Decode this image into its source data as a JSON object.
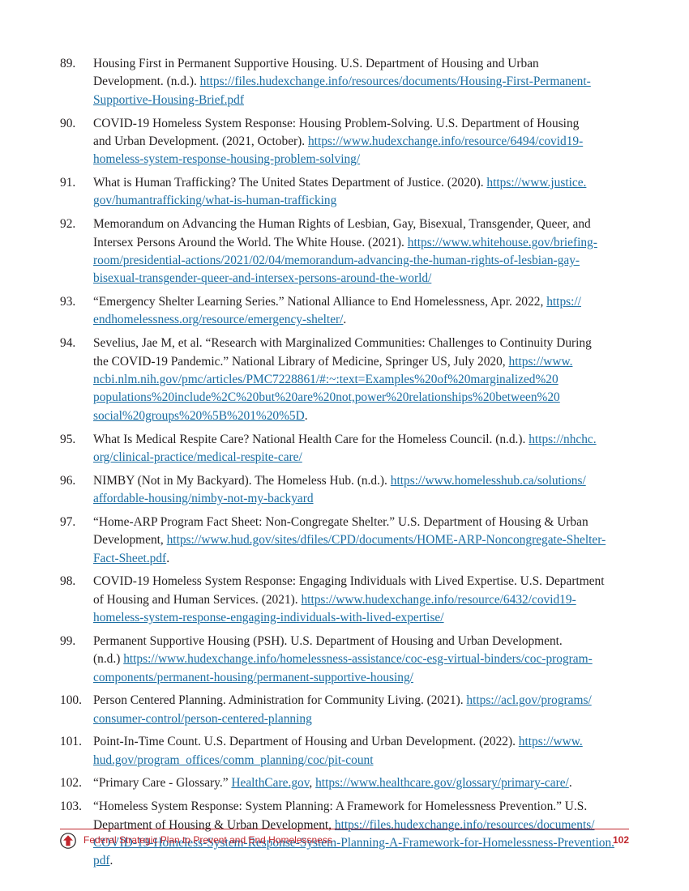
{
  "references": [
    {
      "num": "89.",
      "text": "Housing First in Permanent Supportive Housing. U.S. Department of Housing and Urban\nDevelopment. (n.d.). ",
      "link": "https://files.hudexchange.info/resources/documents/Housing-First-Permanent-\nSupportive-Housing-Brief.pdf",
      "after": ""
    },
    {
      "num": "90.",
      "text": "COVID-19 Homeless System Response: Housing Problem-Solving. U.S. Department of Housing\nand Urban Development. (2021, October). ",
      "link": "https://www.hudexchange.info/resource/6494/covid19-\nhomeless-system-response-housing-problem-solving/",
      "after": ""
    },
    {
      "num": "91.",
      "text": "What is Human Trafficking? The United States Department of Justice. (2020). ",
      "link": "https://www.justice.\ngov/humantrafficking/what-is-human-trafficking",
      "after": ""
    },
    {
      "num": "92.",
      "text": "Memorandum on Advancing the Human Rights of Lesbian, Gay, Bisexual, Transgender, Queer, and\nIntersex Persons Around the World. The White House. (2021). ",
      "link": "https://www.whitehouse.gov/briefing-\nroom/presidential-actions/2021/02/04/memorandum-advancing-the-human-rights-of-lesbian-gay-\nbisexual-transgender-queer-and-intersex-persons-around-the-world/",
      "after": ""
    },
    {
      "num": "93.",
      "text": "“Emergency Shelter Learning Series.” National Alliance to End Homelessness, Apr. 2022, ",
      "link": "https://\nendhomelessness.org/resource/emergency-shelter/",
      "after": "."
    },
    {
      "num": "94.",
      "text": "Sevelius, Jae M, et al. “Research with Marginalized Communities: Challenges to Continuity During\nthe COVID-19 Pandemic.” National Library of Medicine, Springer US, July 2020, ",
      "link": "https://www.\nncbi.nlm.nih.gov/pmc/articles/PMC7228861/#:~:text=Examples%20of%20marginalized%20\npopulations%20include%2C%20but%20are%20not,power%20relationships%20between%20\nsocial%20groups%20%5B%201%20%5D",
      "after": "."
    },
    {
      "num": "95.",
      "text": "What Is Medical Respite Care? National Health Care for the Homeless Council. (n.d.). ",
      "link": "https://nhchc.\norg/clinical-practice/medical-respite-care/",
      "after": ""
    },
    {
      "num": "96.",
      "text": "NIMBY (Not in My Backyard). The Homeless Hub. (n.d.). ",
      "link": "https://www.homelesshub.ca/solutions/\naffordable-housing/nimby-not-my-backyard",
      "after": ""
    },
    {
      "num": "97.",
      "text": "“Home-ARP Program Fact Sheet: Non-Congregate Shelter.” U.S. Department of Housing & Urban\nDevelopment, ",
      "link": "https://www.hud.gov/sites/dfiles/CPD/documents/HOME-ARP-Noncongregate-Shelter-\nFact-Sheet.pdf",
      "after": "."
    },
    {
      "num": "98.",
      "text": "COVID-19 Homeless System Response: Engaging Individuals with Lived Expertise. U.S. Department\nof Housing and Human Services. (2021). ",
      "link": "https://www.hudexchange.info/resource/6432/covid19-\nhomeless-system-response-engaging-individuals-with-lived-expertise/",
      "after": ""
    },
    {
      "num": "99.",
      "text": "Permanent Supportive Housing (PSH). U.S. Department of Housing and Urban Development.\n(n.d.) ",
      "link": "https://www.hudexchange.info/homelessness-assistance/coc-esg-virtual-binders/coc-program-\ncomponents/permanent-housing/permanent-supportive-housing/",
      "after": ""
    },
    {
      "num": "100.",
      "text": "Person Centered Planning. Administration for Community Living. (2021). ",
      "link": "https://acl.gov/programs/\nconsumer-control/person-centered-planning",
      "after": ""
    },
    {
      "num": "101.",
      "text": "Point-In-Time Count. U.S. Department of Housing and Urban Development. (2022). ",
      "link": "https://www.\nhud.gov/program_offices/comm_planning/coc/pit-count",
      "after": ""
    },
    {
      "num": "102.",
      "text": "“Primary Care - Glossary.” ",
      "link": "HealthCare.gov",
      "after": ", ",
      "link2": "https://www.healthcare.gov/glossary/primary-care/",
      "after2": "."
    },
    {
      "num": "103.",
      "text": "“Homeless System Response: System Planning: A Framework for Homelessness Prevention.” U.S.\nDepartment of Housing & Urban Development, ",
      "link": "https://files.hudexchange.info/resources/documents/\nCOVID-19-Homeless-System-Response-System-Planning-A-Framework-for-Homelessness-Prevention.\npdf",
      "after": "."
    }
  ],
  "footer": {
    "title": "Federal Strategic Plan to Prevent and End Homelessness",
    "page_number": "102",
    "accent_color": "#c0262d",
    "logo_icon": "house-arrow-icon"
  },
  "colors": {
    "link": "#1b6ea3",
    "text": "#231f20"
  }
}
